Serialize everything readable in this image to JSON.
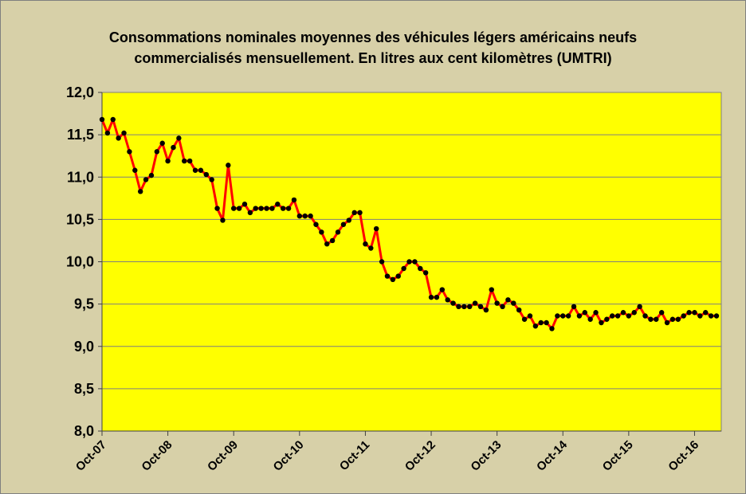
{
  "chart_data": {
    "type": "line",
    "title_line1": "Consommations nominales  moyennes des véhicules légers américains  neufs",
    "title_line2": "commercialisés mensuellement.  En litres aux cent kilomètres (UMTRI)",
    "xlabel": "",
    "ylabel": "",
    "ylim": [
      8.0,
      12.0
    ],
    "y_ticks": [
      "8,0",
      "8,5",
      "9,0",
      "9,5",
      "10,0",
      "10,5",
      "11,0",
      "11,5",
      "12,0"
    ],
    "x_ticks": [
      "Oct-07",
      "Oct-08",
      "Oct-09",
      "Oct-10",
      "Oct-11",
      "Oct-12",
      "Oct-13",
      "Oct-14",
      "Oct-15",
      "Oct-16"
    ],
    "x_start": "Oct-07",
    "grid": true,
    "colors": {
      "plot_bg": "#FFFF00",
      "line": "#FF0000",
      "marker": "#000000",
      "chart_bg": "#D7D0A8"
    },
    "values": [
      11.68,
      11.52,
      11.68,
      11.46,
      11.52,
      11.3,
      11.08,
      10.83,
      10.97,
      11.02,
      11.3,
      11.4,
      11.19,
      11.35,
      11.46,
      11.19,
      11.19,
      11.08,
      11.08,
      11.03,
      10.97,
      10.63,
      10.49,
      11.14,
      10.63,
      10.63,
      10.68,
      10.58,
      10.63,
      10.63,
      10.63,
      10.63,
      10.68,
      10.63,
      10.63,
      10.73,
      10.54,
      10.54,
      10.54,
      10.44,
      10.35,
      10.21,
      10.25,
      10.35,
      10.44,
      10.49,
      10.58,
      10.58,
      10.21,
      10.16,
      10.39,
      10.0,
      9.83,
      9.79,
      9.83,
      9.92,
      10.0,
      10.0,
      9.92,
      9.87,
      9.58,
      9.58,
      9.67,
      9.55,
      9.51,
      9.47,
      9.47,
      9.47,
      9.51,
      9.47,
      9.43,
      9.67,
      9.51,
      9.47,
      9.55,
      9.51,
      9.43,
      9.32,
      9.36,
      9.24,
      9.28,
      9.28,
      9.21,
      9.36,
      9.36,
      9.36,
      9.47,
      9.36,
      9.4,
      9.32,
      9.4,
      9.28,
      9.32,
      9.36,
      9.36,
      9.4,
      9.36,
      9.4,
      9.47,
      9.36,
      9.32,
      9.32,
      9.4,
      9.28,
      9.32,
      9.32,
      9.36,
      9.4,
      9.4,
      9.36,
      9.4,
      9.36,
      9.36
    ]
  }
}
